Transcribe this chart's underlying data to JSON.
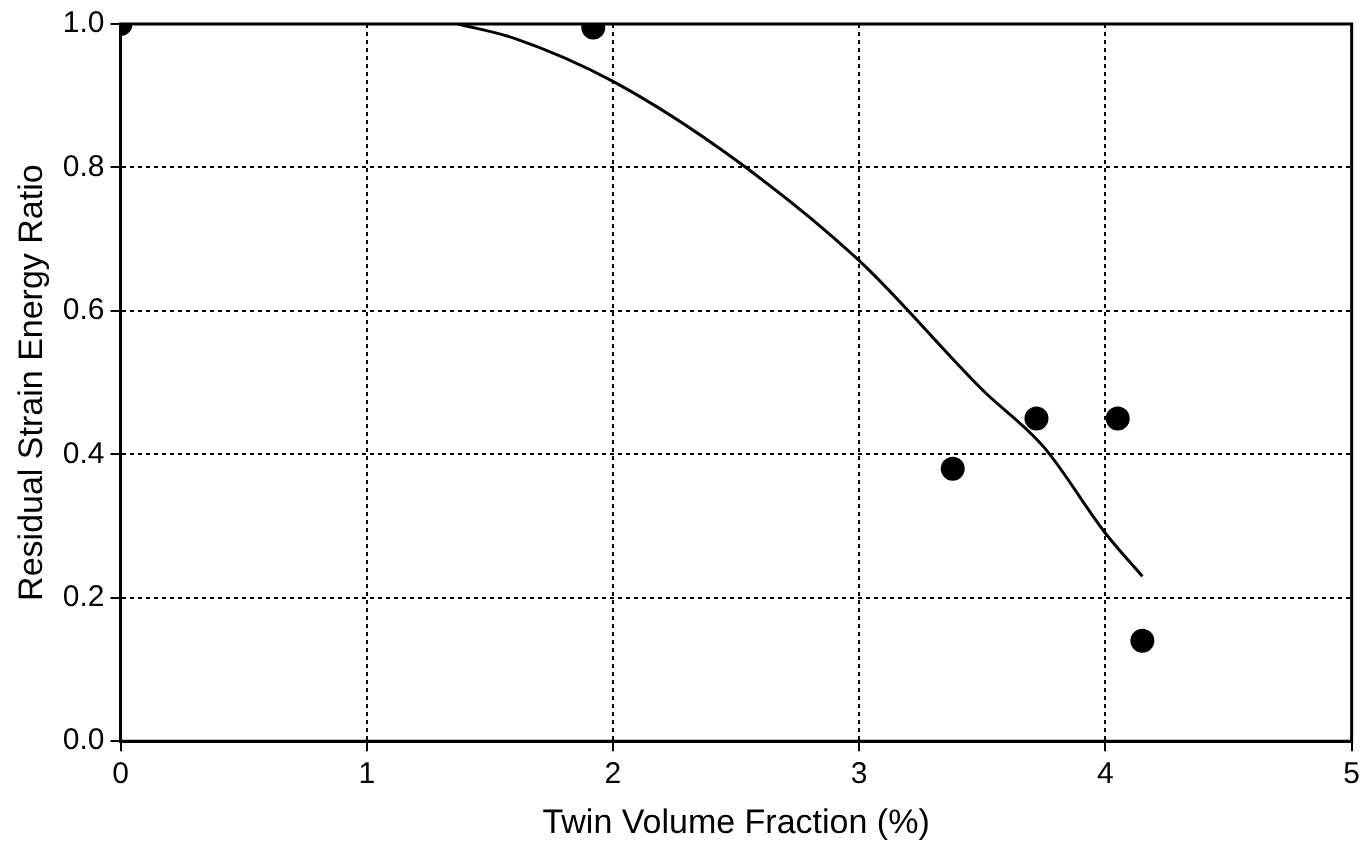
{
  "chart_data": {
    "type": "scatter",
    "xlabel": "Twin Volume Fraction (%)",
    "ylabel": "Residual Strain Energy Ratio",
    "xlim": [
      0,
      5
    ],
    "xticks": [
      0,
      1,
      2,
      3,
      4,
      5
    ],
    "ylim": [
      0,
      1
    ],
    "yticks": [
      {
        "value": 0,
        "label": "0.0"
      },
      {
        "value": 0.2,
        "label": "0.2"
      },
      {
        "value": 0.4,
        "label": "0.4"
      },
      {
        "value": 0.6,
        "label": "0.6"
      },
      {
        "value": 0.8,
        "label": "0.8"
      },
      {
        "value": 1,
        "label": "1.0"
      }
    ],
    "grid": true,
    "marker": "circle",
    "series": [
      {
        "type": "scatter",
        "color": "#000000",
        "x": [
          0,
          1.92,
          3.38,
          3.72,
          4.05,
          4.15
        ],
        "values": [
          1.0,
          0.995,
          0.38,
          0.45,
          0.45,
          0.14
        ]
      },
      {
        "type": "line",
        "color": "#000000",
        "marker": "none",
        "x": [
          1.37,
          1.6,
          2.0,
          2.5,
          3.0,
          3.5,
          3.75,
          4.0,
          4.15
        ],
        "values": [
          1.0,
          0.98,
          0.92,
          0.81,
          0.67,
          0.49,
          0.41,
          0.29,
          0.23
        ]
      }
    ]
  }
}
